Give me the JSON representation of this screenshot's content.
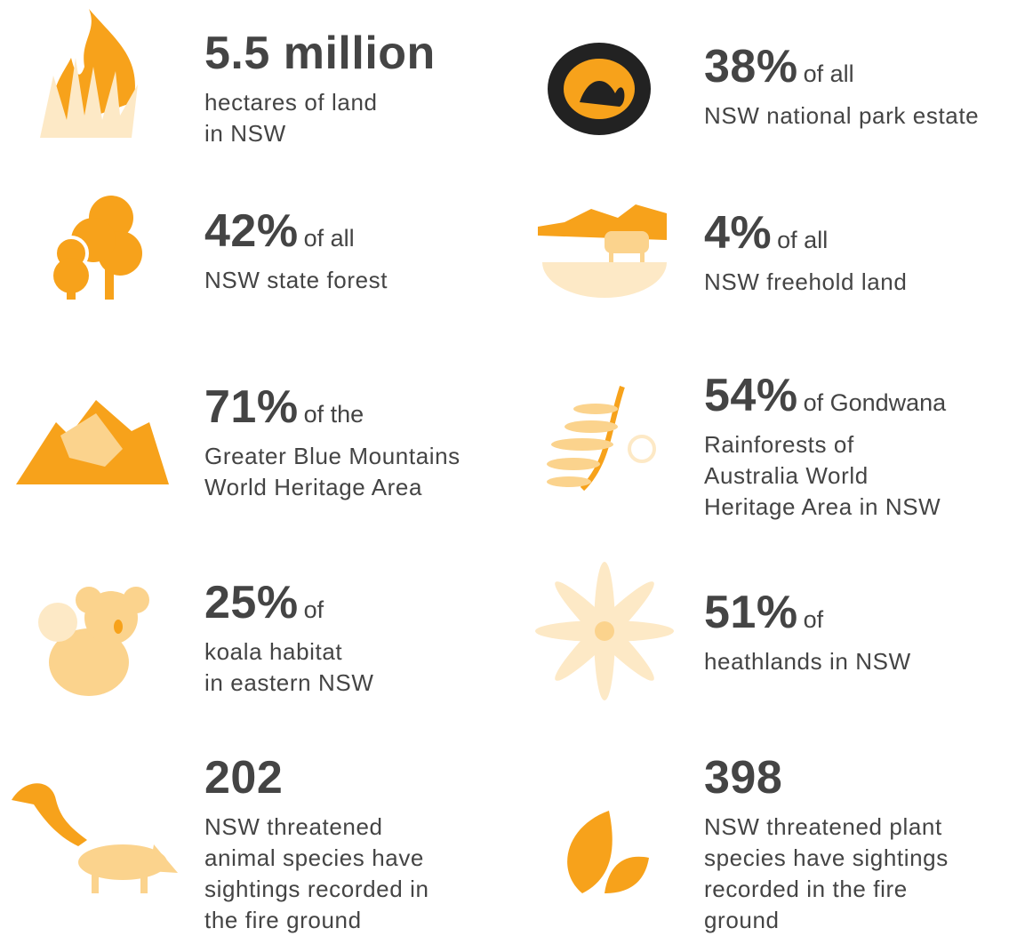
{
  "items": [
    {
      "headline": "5.5 million",
      "lines": [
        "hectares of land",
        "in NSW"
      ]
    },
    {
      "headline": "38%",
      "suffix": "of all",
      "lines": [
        "NSW national park estate"
      ]
    },
    {
      "headline": "42%",
      "suffix": "of all",
      "lines": [
        "NSW state forest"
      ]
    },
    {
      "headline": "4%",
      "suffix": "of all",
      "lines": [
        "NSW freehold land"
      ]
    },
    {
      "headline": "71%",
      "suffix": "of the",
      "lines": [
        "Greater Blue Mountains",
        "World Heritage Area"
      ]
    },
    {
      "headline": "54%",
      "suffix": "of Gondwana",
      "lines": [
        "Rainforests of",
        "Australia World",
        "Heritage Area in NSW"
      ]
    },
    {
      "headline": "25%",
      "suffix": "of",
      "lines": [
        "koala habitat",
        "in eastern NSW"
      ]
    },
    {
      "headline": "51%",
      "suffix": "of",
      "lines": [
        "heathlands in NSW"
      ]
    },
    {
      "headline": "202",
      "lines": [
        "NSW threatened",
        "animal species have",
        "sightings recorded in",
        "the fire ground"
      ]
    },
    {
      "headline": "398",
      "lines": [
        "NSW threatened plant",
        "species have sightings",
        "recorded in the fire",
        "ground"
      ]
    }
  ]
}
